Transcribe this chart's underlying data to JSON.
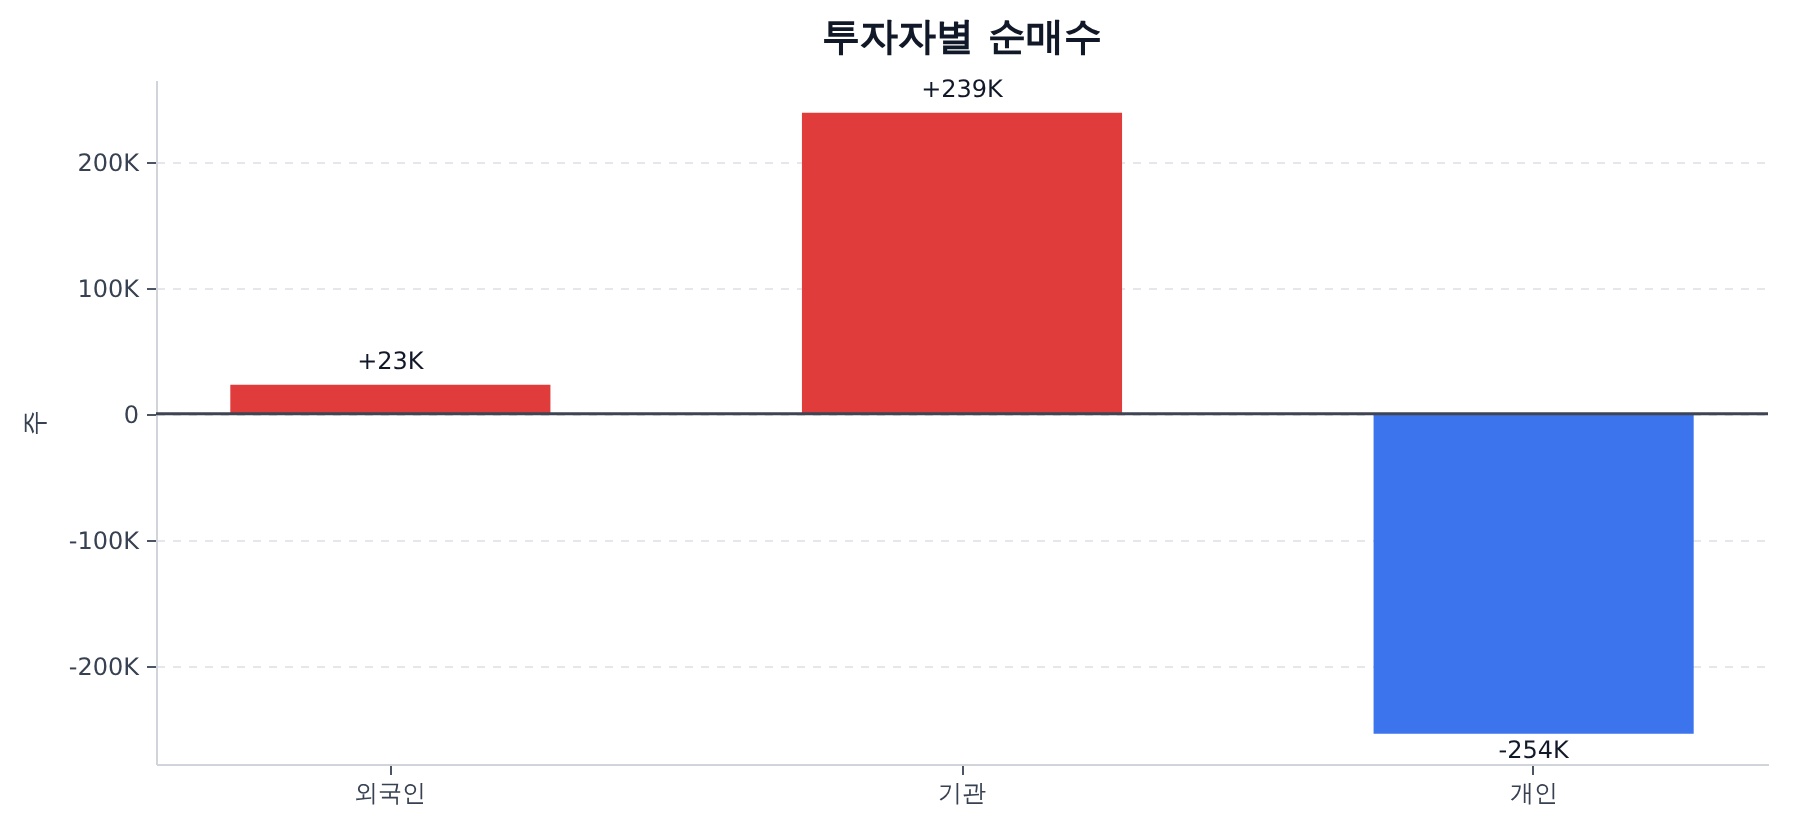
{
  "chart_data": {
    "type": "bar",
    "title": "투자자별 순매수",
    "ylabel": "주",
    "categories": [
      "외국인",
      "기관",
      "개인"
    ],
    "values": [
      23000,
      239000,
      -254000
    ],
    "colors": [
      "#e03c3c",
      "#e03c3c",
      "#3b74ec"
    ],
    "value_labels": [
      "+23K",
      "+239K",
      "-254K"
    ],
    "ylim": [
      -278000,
      265000
    ],
    "yticks": [
      {
        "value": -200000,
        "label": "-200K"
      },
      {
        "value": -100000,
        "label": "-100K"
      },
      0,
      {
        "value": 100000,
        "label": "100K"
      },
      {
        "value": 200000,
        "label": "200K"
      }
    ],
    "grid": "y",
    "ref_lines": [
      {
        "axis": "y",
        "value": 0,
        "color": "#3f4452"
      }
    ]
  }
}
